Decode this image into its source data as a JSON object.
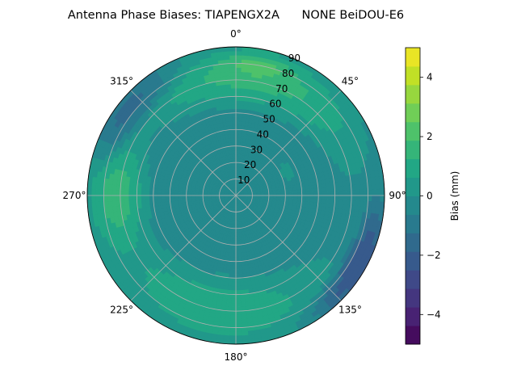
{
  "chart_data": {
    "type": "heatmap",
    "projection": "polar",
    "title": "Antenna Phase Biases: TIAPENGX2A      NONE BeiDOU-E6",
    "theta_direction": "clockwise",
    "theta_zero": "north",
    "theta_ticks": [
      "0°",
      "45°",
      "90°",
      "135°",
      "180°",
      "225°",
      "270°",
      "315°"
    ],
    "r_ticks": [
      "10",
      "20",
      "30",
      "40",
      "50",
      "60",
      "70",
      "80",
      "90"
    ],
    "r_range": [
      0,
      90
    ],
    "grid": true,
    "colorbar": {
      "label": "Bias (mm)",
      "ticks": [
        "−4",
        "−2",
        "0",
        "2",
        "4"
      ],
      "range": [
        -5,
        5
      ],
      "levels": [
        -5,
        -4.375,
        -3.75,
        -3.125,
        -2.5,
        -1.875,
        -1.25,
        -0.625,
        0,
        0.625,
        1.25,
        1.875,
        2.5,
        3.125,
        3.75,
        4.375,
        5
      ],
      "colormap": "viridis"
    },
    "colors": [
      "#440154",
      "#482374",
      "#404387",
      "#345e8d",
      "#29788e",
      "#20908c",
      "#22a884",
      "#44be70",
      "#7ad151",
      "#bddf26",
      "#fde725"
    ],
    "field": {
      "description_of_regions": [
        {
          "azimuth": [
            0,
            360
          ],
          "zenith": [
            0,
            55
          ],
          "bias": -0.6
        },
        {
          "azimuth": [
            20,
            110
          ],
          "zenith": [
            15,
            45
          ],
          "bias": 0.5
        },
        {
          "azimuth": [
            150,
            230
          ],
          "zenith": [
            55,
            85
          ],
          "bias": 1.6
        },
        {
          "azimuth": [
            250,
            290
          ],
          "zenith": [
            60,
            85
          ],
          "bias": 2.3
        },
        {
          "azimuth": [
            330,
            50
          ],
          "zenith": [
            60,
            85
          ],
          "bias": 2.2
        },
        {
          "azimuth": [
            5,
            15
          ],
          "zenith": [
            75,
            82
          ],
          "bias": 3.2
        },
        {
          "azimuth": [
            100,
            140
          ],
          "zenith": [
            80,
            90
          ],
          "bias": -3.0
        },
        {
          "azimuth": [
            290,
            330
          ],
          "zenith": [
            75,
            90
          ],
          "bias": -1.8
        }
      ]
    }
  }
}
